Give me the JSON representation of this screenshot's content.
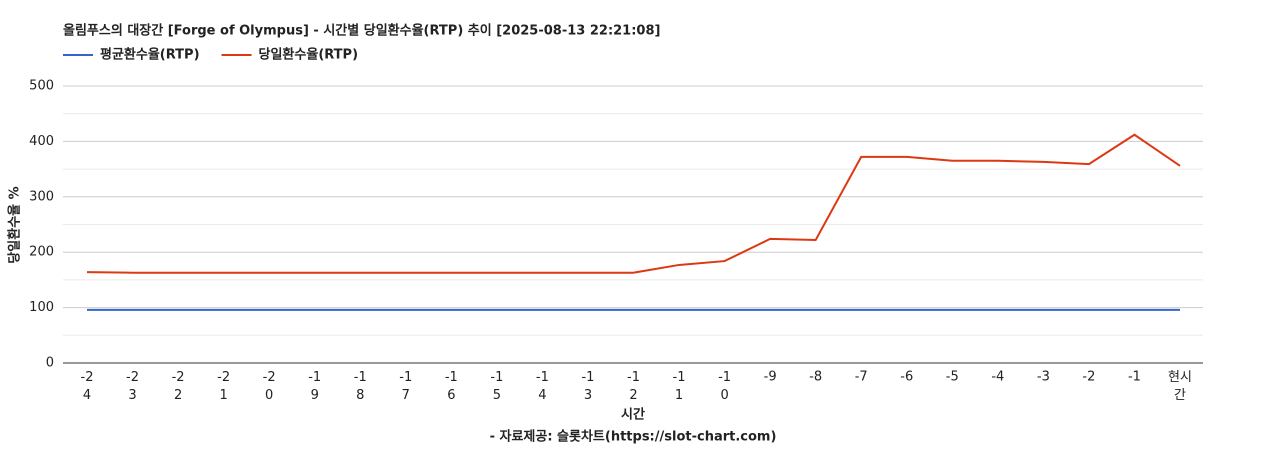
{
  "chart_data": {
    "type": "line",
    "title": "올림푸스의 대장간 [Forge of Olympus] - 시간별 당일환수율(RTP) 추이 [2025-08-13 22:21:08]",
    "x_label": "시간",
    "y_label": "당일환수율 %",
    "source": "- 자료제공: 슬롯차트(https://slot-chart.com)",
    "categories": [
      "-24",
      "-23",
      "-22",
      "-21",
      "-20",
      "-19",
      "-18",
      "-17",
      "-16",
      "-15",
      "-14",
      "-13",
      "-12",
      "-11",
      "-10",
      "-9",
      "-8",
      "-7",
      "-6",
      "-5",
      "-4",
      "-3",
      "-2",
      "-1",
      "현시간"
    ],
    "series": [
      {
        "name": "평균환수율(RTP)",
        "color": "#3366cc",
        "values": [
          96,
          96,
          96,
          96,
          96,
          96,
          96,
          96,
          96,
          96,
          96,
          96,
          96,
          96,
          96,
          96,
          96,
          96,
          96,
          96,
          96,
          96,
          96,
          96,
          96
        ]
      },
      {
        "name": "당일환수율(RTP)",
        "color": "#dc3912",
        "values": [
          164,
          163,
          163,
          163,
          163,
          163,
          163,
          163,
          163,
          163,
          163,
          163,
          163,
          177,
          184,
          224,
          222,
          372,
          372,
          365,
          365,
          363,
          359,
          412,
          356
        ]
      }
    ],
    "ylim": [
      0,
      500
    ],
    "yticks": [
      0,
      100,
      200,
      300,
      400,
      500
    ],
    "yminorticks": [
      50,
      150,
      250,
      350,
      450
    ],
    "grid": true,
    "legend": "top-left"
  }
}
